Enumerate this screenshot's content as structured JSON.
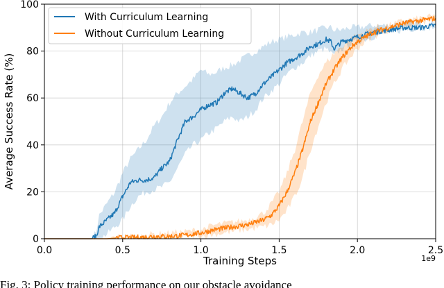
{
  "chart_data": {
    "type": "line",
    "title": "",
    "xlabel": "Training Steps",
    "ylabel": "Average Success Rate (%)",
    "x_offset_label": "1e9",
    "xlim": [
      0,
      2.5
    ],
    "ylim": [
      0,
      100
    ],
    "x_ticks": [
      0.0,
      0.5,
      1.0,
      1.5,
      2.0,
      2.5
    ],
    "x_tick_labels": [
      "0.0",
      "0.5",
      "1.0",
      "1.5",
      "2.0",
      "2.5"
    ],
    "y_ticks": [
      0,
      20,
      40,
      60,
      80,
      100
    ],
    "y_tick_labels": [
      "0",
      "20",
      "40",
      "60",
      "80",
      "100"
    ],
    "grid": true,
    "legend_position": "top-left",
    "series": [
      {
        "name": "With Curriculum Learning",
        "color": "#1f77b4",
        "x": [
          0.0,
          0.3,
          0.33,
          0.35,
          0.4,
          0.45,
          0.5,
          0.55,
          0.6,
          0.65,
          0.7,
          0.75,
          0.8,
          0.85,
          0.9,
          0.95,
          1.0,
          1.05,
          1.1,
          1.15,
          1.2,
          1.25,
          1.3,
          1.35,
          1.4,
          1.45,
          1.5,
          1.55,
          1.6,
          1.65,
          1.7,
          1.75,
          1.8,
          1.83,
          1.85,
          1.9,
          1.95,
          2.0,
          2.1,
          2.2,
          2.3,
          2.4,
          2.5
        ],
        "y": [
          0.0,
          0.0,
          1.0,
          5.0,
          8.0,
          11.0,
          18.0,
          24.0,
          25.0,
          25.0,
          26.0,
          30.0,
          33.0,
          42.0,
          50.0,
          52.0,
          55.0,
          57.0,
          58.0,
          62.0,
          64.0,
          62.0,
          60.0,
          62.0,
          66.0,
          69.0,
          72.0,
          75.0,
          77.0,
          79.0,
          82.0,
          83.0,
          85.0,
          84.0,
          81.0,
          84.0,
          85.0,
          86.0,
          88.0,
          89.0,
          90.0,
          90.0,
          91.0
        ],
        "lower": [
          0.0,
          0.0,
          0.0,
          0.0,
          2.0,
          5.0,
          8.0,
          14.0,
          18.0,
          20.0,
          21.0,
          22.0,
          24.0,
          30.0,
          36.0,
          40.0,
          42.0,
          45.0,
          47.0,
          50.0,
          52.0,
          50.0,
          52.0,
          55.0,
          60.0,
          63.0,
          66.0,
          70.0,
          73.0,
          75.0,
          78.0,
          80.0,
          81.0,
          79.0,
          78.0,
          81.0,
          83.0,
          84.0,
          86.0,
          88.0,
          89.0,
          90.0,
          90.0
        ],
        "upper": [
          0.0,
          0.0,
          3.0,
          10.0,
          15.0,
          20.0,
          28.0,
          34.0,
          38.0,
          42.0,
          48.0,
          52.0,
          58.0,
          62.0,
          65.0,
          68.0,
          72.0,
          70.0,
          71.0,
          73.0,
          74.0,
          76.0,
          78.0,
          80.0,
          82.0,
          84.0,
          85.0,
          86.0,
          87.0,
          88.0,
          88.0,
          89.0,
          90.0,
          90.0,
          89.0,
          89.0,
          90.0,
          90.0,
          91.0,
          91.0,
          92.0,
          92.0,
          92.0
        ]
      },
      {
        "name": "Without Curriculum Learning",
        "color": "#ff7f0e",
        "x": [
          0.0,
          0.3,
          0.4,
          0.5,
          0.6,
          0.7,
          0.8,
          0.9,
          1.0,
          1.1,
          1.2,
          1.3,
          1.4,
          1.45,
          1.5,
          1.55,
          1.6,
          1.65,
          1.7,
          1.75,
          1.8,
          1.85,
          1.9,
          1.95,
          2.0,
          2.05,
          2.1,
          2.2,
          2.3,
          2.4,
          2.5
        ],
        "y": [
          0.0,
          0.0,
          0.0,
          0.5,
          0.5,
          1.0,
          1.0,
          1.5,
          2.5,
          4.0,
          5.0,
          6.0,
          8.0,
          10.0,
          14.0,
          20.0,
          28.0,
          38.0,
          50.0,
          58.0,
          66.0,
          72.0,
          77.0,
          81.0,
          84.0,
          86.0,
          88.0,
          90.0,
          92.0,
          93.0,
          94.0
        ],
        "lower": [
          0.0,
          0.0,
          0.0,
          0.0,
          0.0,
          0.0,
          0.0,
          0.5,
          1.0,
          2.0,
          3.0,
          4.0,
          5.0,
          6.0,
          8.0,
          12.0,
          18.0,
          26.0,
          38.0,
          48.0,
          58.0,
          66.0,
          72.0,
          77.0,
          81.0,
          84.0,
          86.0,
          89.0,
          91.0,
          92.0,
          93.0
        ],
        "upper": [
          0.0,
          0.0,
          0.2,
          1.0,
          1.2,
          2.0,
          2.5,
          3.0,
          4.0,
          6.0,
          7.0,
          8.0,
          11.0,
          15.0,
          20.0,
          28.0,
          38.0,
          50.0,
          62.0,
          70.0,
          75.0,
          79.0,
          82.0,
          85.0,
          87.0,
          88.0,
          90.0,
          91.0,
          93.0,
          94.0,
          95.0
        ]
      }
    ]
  },
  "caption": {
    "text": "Fig. 3: Policy training performance on our obstacle avoidance"
  }
}
